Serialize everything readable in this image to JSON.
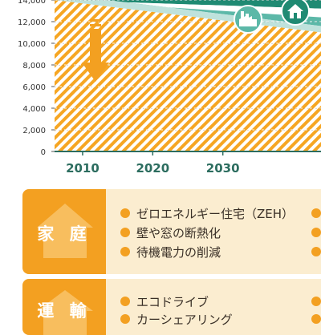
{
  "chart_data": {
    "type": "area",
    "title": "",
    "xlabel": "",
    "ylabel": "",
    "x_ticks": [
      2010,
      2020,
      2030
    ],
    "y_ticks": [
      0,
      2000,
      4000,
      6000,
      8000,
      10000,
      12000,
      14000
    ],
    "y_tick_labels": [
      "0",
      "2,000",
      "4,000",
      "6,000",
      "8,000",
      "10,000",
      "12,000",
      "14,000"
    ],
    "xlim": [
      2006,
      2044
    ],
    "ylim": [
      0,
      14000
    ],
    "grid": "horizontal-dashed",
    "series": [
      {
        "x": [
          2006,
          2044
        ],
        "values": [
          14000,
          11000
        ]
      },
      {
        "x": [
          2006,
          2044
        ],
        "values": [
          14000,
          12400
        ]
      },
      {
        "x": [
          2006,
          2044
        ],
        "values": [
          14000,
          13200
        ]
      }
    ],
    "annotations": [
      "down-arrow",
      "factory-icon",
      "house-icon"
    ]
  },
  "colors": {
    "hatch": "#f6a623",
    "band_light": "#bfe2dc",
    "band_mid": "#5cb8a8",
    "band_dark": "#1f8a73",
    "arrow": "#f3a021",
    "axis": "#2c6d5f"
  },
  "sections": [
    {
      "category": "家 庭",
      "items": [
        "ゼロエネルギー住宅（ZEH）",
        "壁や窓の断熱化",
        "待機電力の削減"
      ]
    },
    {
      "category": "運 輸",
      "items": [
        "エコドライブ",
        "カーシェアリング"
      ]
    }
  ]
}
